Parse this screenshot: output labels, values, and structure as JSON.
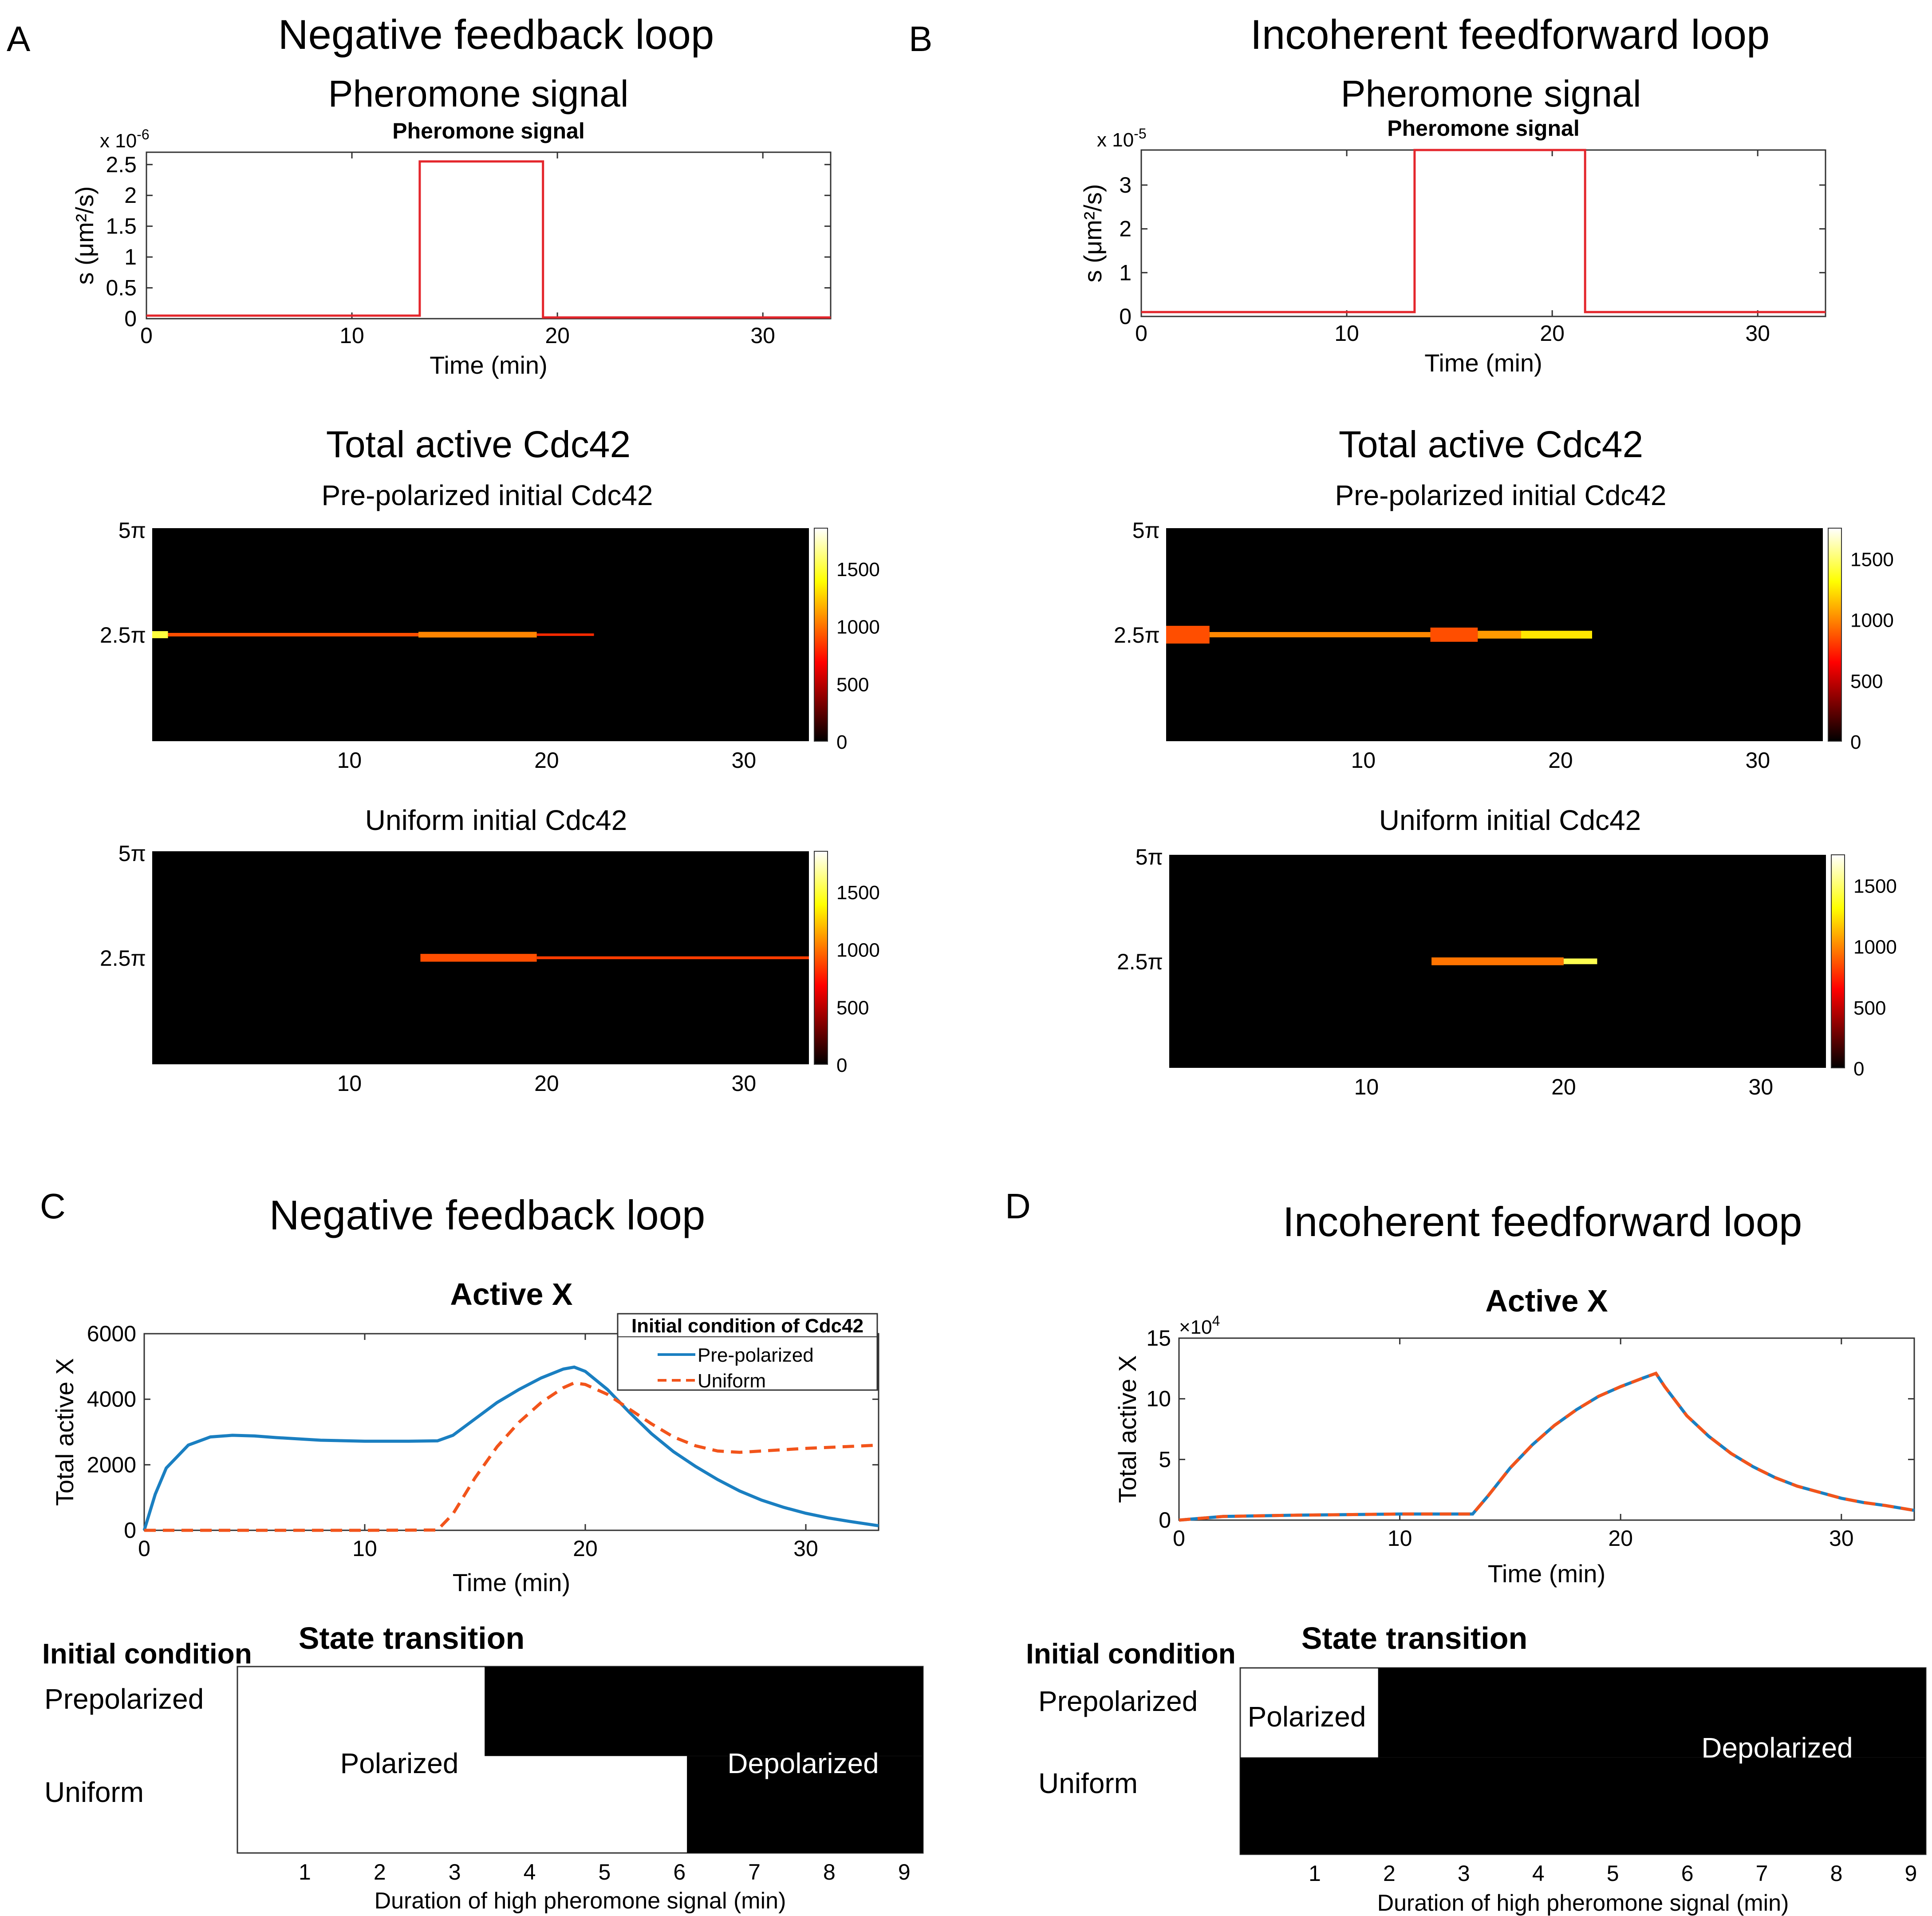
{
  "panels": {
    "A": {
      "letter": "A",
      "title": "Negative feedback loop"
    },
    "B": {
      "letter": "B",
      "title": "Incoherent feedforward loop"
    },
    "C": {
      "letter": "C",
      "title": "Negative feedback loop"
    },
    "D": {
      "letter": "D",
      "title": "Incoherent feedforward loop"
    }
  },
  "section_titles": {
    "pheromone": "Pheromone signal",
    "total_cdc42": "Total active Cdc42",
    "pre_polarized": "Pre-polarized initial Cdc42",
    "uniform": "Uniform initial Cdc42"
  },
  "colors": {
    "pheromone": "#e4262c",
    "pre": "#1a7fc1",
    "uni": "#f2541b"
  },
  "chart_data": [
    {
      "id": "A-pheromone",
      "type": "line",
      "title": "Pheromone signal",
      "xlabel": "Time (min)",
      "ylabel": "s (μm²/s)",
      "exponent_base": "x 10",
      "exponent_power": "-6",
      "xlim": [
        0,
        33.3
      ],
      "ylim": [
        0,
        2.7
      ],
      "xticks": [
        0,
        10,
        20,
        30
      ],
      "yticks": [
        0,
        0.5,
        1,
        1.5,
        2,
        2.5
      ],
      "x": [
        0,
        13.3,
        13.3,
        19.3,
        19.3,
        33.3
      ],
      "y": [
        0.05,
        0.05,
        2.55,
        2.55,
        0.02,
        0.02
      ]
    },
    {
      "id": "B-pheromone",
      "type": "line",
      "title": "Pheromone signal",
      "xlabel": "Time (min)",
      "ylabel": "s (μm²/s)",
      "exponent_base": "x 10",
      "exponent_power": "-5",
      "xlim": [
        0,
        33.3
      ],
      "ylim": [
        0,
        3.8
      ],
      "xticks": [
        0,
        10,
        20,
        30
      ],
      "yticks": [
        0,
        1,
        2,
        3
      ],
      "x": [
        0,
        13.3,
        13.3,
        21.6,
        21.6,
        33.3
      ],
      "y": [
        0.1,
        0.1,
        3.8,
        3.8,
        0.1,
        0.1
      ]
    },
    {
      "id": "A-heat-pre",
      "type": "heatmap",
      "title": "Pre-polarized initial Cdc42",
      "xlim": [
        0,
        33.3
      ],
      "xticks": [
        10,
        20,
        30
      ],
      "yticks": [
        "5π",
        "2.5π"
      ],
      "colorbar_ticks": [
        0,
        500,
        1000,
        1500
      ],
      "colorbar_max": 1850,
      "band": {
        "y": "2.5π",
        "segments": [
          {
            "t0": 0,
            "t1": 0.8,
            "value": 1500,
            "width": 2
          },
          {
            "t0": 0.8,
            "t1": 13.5,
            "value": 900,
            "width": 1
          },
          {
            "t0": 13.5,
            "t1": 19.5,
            "value": 1050,
            "width": 1.6
          },
          {
            "t0": 19.5,
            "t1": 22.4,
            "value": 800,
            "width": 0.7
          }
        ]
      }
    },
    {
      "id": "A-heat-uni",
      "type": "heatmap",
      "title": "Uniform initial Cdc42",
      "xlim": [
        0,
        33.3
      ],
      "xticks": [
        10,
        20,
        30
      ],
      "yticks": [
        "5π",
        "2.5π"
      ],
      "colorbar_ticks": [
        0,
        500,
        1000,
        1500
      ],
      "colorbar_max": 1850,
      "band": {
        "y": "2.5π",
        "segments": [
          {
            "t0": 13.6,
            "t1": 19.5,
            "value": 900,
            "width": 2.2
          },
          {
            "t0": 19.5,
            "t1": 33.3,
            "value": 850,
            "width": 0.8
          }
        ]
      }
    },
    {
      "id": "B-heat-pre",
      "type": "heatmap",
      "title": "Pre-polarized initial Cdc42",
      "xlim": [
        0,
        33.3
      ],
      "xticks": [
        10,
        20,
        30
      ],
      "yticks": [
        "5π",
        "2.5π"
      ],
      "colorbar_ticks": [
        0,
        500,
        1000,
        1500
      ],
      "colorbar_max": 1750,
      "band": {
        "y": "2.5π",
        "segments": [
          {
            "t0": 0,
            "t1": 2.2,
            "value": 850,
            "width": 5
          },
          {
            "t0": 2.2,
            "t1": 13.4,
            "value": 1000,
            "width": 1.5
          },
          {
            "t0": 13.4,
            "t1": 15.8,
            "value": 850,
            "width": 4
          },
          {
            "t0": 15.8,
            "t1": 18.0,
            "value": 1050,
            "width": 2.2
          },
          {
            "t0": 18.0,
            "t1": 21.6,
            "value": 1250,
            "width": 2.2
          }
        ]
      }
    },
    {
      "id": "B-heat-uni",
      "type": "heatmap",
      "title": "Uniform initial Cdc42",
      "xlim": [
        0,
        33.3
      ],
      "xticks": [
        10,
        20,
        30
      ],
      "yticks": [
        "5π",
        "2.5π"
      ],
      "colorbar_ticks": [
        0,
        500,
        1000,
        1500
      ],
      "colorbar_max": 1750,
      "band": {
        "y": "2.5π",
        "segments": [
          {
            "t0": 13.3,
            "t1": 20.0,
            "value": 950,
            "width": 2.2
          },
          {
            "t0": 20.0,
            "t1": 21.7,
            "value": 1450,
            "width": 1.6
          }
        ]
      }
    },
    {
      "id": "C-activeX",
      "type": "line",
      "title": "Active X",
      "xlabel": "Time (min)",
      "ylabel": "Total active X",
      "xlim": [
        0,
        33.3
      ],
      "ylim": [
        0,
        6000
      ],
      "xticks": [
        0,
        10,
        20,
        30
      ],
      "yticks": [
        0,
        2000,
        4000,
        6000
      ],
      "legend": {
        "title": "Initial condition of Cdc42",
        "placement": "top-right"
      },
      "series": [
        {
          "name": "Pre-polarized",
          "style": "solid",
          "x": [
            0,
            0.5,
            1,
            2,
            3,
            4,
            5,
            6,
            8,
            10,
            12,
            13.3,
            14,
            15,
            16,
            17,
            18,
            19,
            19.5,
            20,
            21,
            22,
            23,
            24,
            25,
            26,
            27,
            28,
            29,
            30,
            31,
            32,
            33.3
          ],
          "y": [
            0,
            1100,
            1900,
            2600,
            2850,
            2900,
            2880,
            2830,
            2750,
            2720,
            2720,
            2730,
            2900,
            3400,
            3900,
            4300,
            4650,
            4920,
            4980,
            4850,
            4300,
            3600,
            2950,
            2400,
            1950,
            1550,
            1200,
            920,
            700,
            520,
            380,
            270,
            140
          ]
        },
        {
          "name": "Uniform",
          "style": "dashed",
          "x": [
            0,
            5,
            10,
            13.3,
            14,
            15,
            16,
            17,
            18,
            19,
            19.5,
            20,
            21,
            22,
            23,
            24,
            25,
            26,
            27,
            28,
            30,
            32,
            33.3
          ],
          "y": [
            0,
            0,
            0,
            10,
            500,
            1600,
            2550,
            3300,
            3900,
            4350,
            4500,
            4450,
            4150,
            3700,
            3250,
            2850,
            2580,
            2420,
            2380,
            2420,
            2500,
            2560,
            2600
          ]
        }
      ]
    },
    {
      "id": "D-activeX",
      "type": "line",
      "title": "Active X",
      "xlabel": "Time (min)",
      "ylabel": "Total active X",
      "exponent_base": "×10",
      "exponent_power": "4",
      "xlim": [
        0,
        33.3
      ],
      "ylim": [
        0,
        15
      ],
      "xticks": [
        0,
        10,
        20,
        30
      ],
      "yticks": [
        0,
        5,
        10,
        15
      ],
      "series": [
        {
          "name": "Pre-polarized",
          "style": "solid",
          "x": [
            0,
            2,
            5,
            10,
            13.3,
            14,
            15,
            16,
            17,
            18,
            19,
            20,
            21,
            21.6,
            22,
            23,
            24,
            25,
            26,
            27,
            28,
            29,
            30,
            31,
            32,
            33.3
          ],
          "y": [
            0,
            0.3,
            0.4,
            0.5,
            0.5,
            2.0,
            4.3,
            6.2,
            7.8,
            9.1,
            10.2,
            11.0,
            11.7,
            12.1,
            11.0,
            8.6,
            6.9,
            5.5,
            4.4,
            3.5,
            2.8,
            2.3,
            1.8,
            1.45,
            1.2,
            0.8
          ]
        },
        {
          "name": "Uniform",
          "style": "dashed",
          "x": [
            0,
            2,
            5,
            10,
            13.3,
            14,
            15,
            16,
            17,
            18,
            19,
            20,
            21,
            21.6,
            22,
            23,
            24,
            25,
            26,
            27,
            28,
            29,
            30,
            31,
            32,
            33.3
          ],
          "y": [
            0,
            0.3,
            0.4,
            0.5,
            0.5,
            2.0,
            4.3,
            6.2,
            7.8,
            9.1,
            10.2,
            11.0,
            11.7,
            12.1,
            11.0,
            8.6,
            6.9,
            5.5,
            4.4,
            3.5,
            2.8,
            2.3,
            1.8,
            1.45,
            1.2,
            0.8
          ]
        }
      ]
    },
    {
      "id": "C-state",
      "type": "heatmap",
      "title": "State transition",
      "row_header": "Initial condition",
      "rows": [
        "Prepolarized",
        "Uniform"
      ],
      "xlabel": "Duration of high pheromone signal (min)",
      "xlim": [
        0.1,
        9.25
      ],
      "xticks": [
        1,
        2,
        3,
        4,
        5,
        6,
        7,
        8,
        9
      ],
      "transitions": [
        3.4,
        6.1
      ],
      "labels": {
        "polarized": "Polarized",
        "depolarized": "Depolarized"
      }
    },
    {
      "id": "D-state",
      "type": "heatmap",
      "title": "State transition",
      "row_header": "Initial condition",
      "rows": [
        "Prepolarized",
        "Uniform"
      ],
      "xlabel": "Duration of high pheromone signal (min)",
      "xlim": [
        0.0,
        9.2
      ],
      "xticks": [
        1,
        2,
        3,
        4,
        5,
        6,
        7,
        8,
        9
      ],
      "transitions": [
        1.85,
        0.0
      ],
      "labels": {
        "polarized": "Polarized",
        "depolarized": "Depolarized"
      }
    }
  ]
}
